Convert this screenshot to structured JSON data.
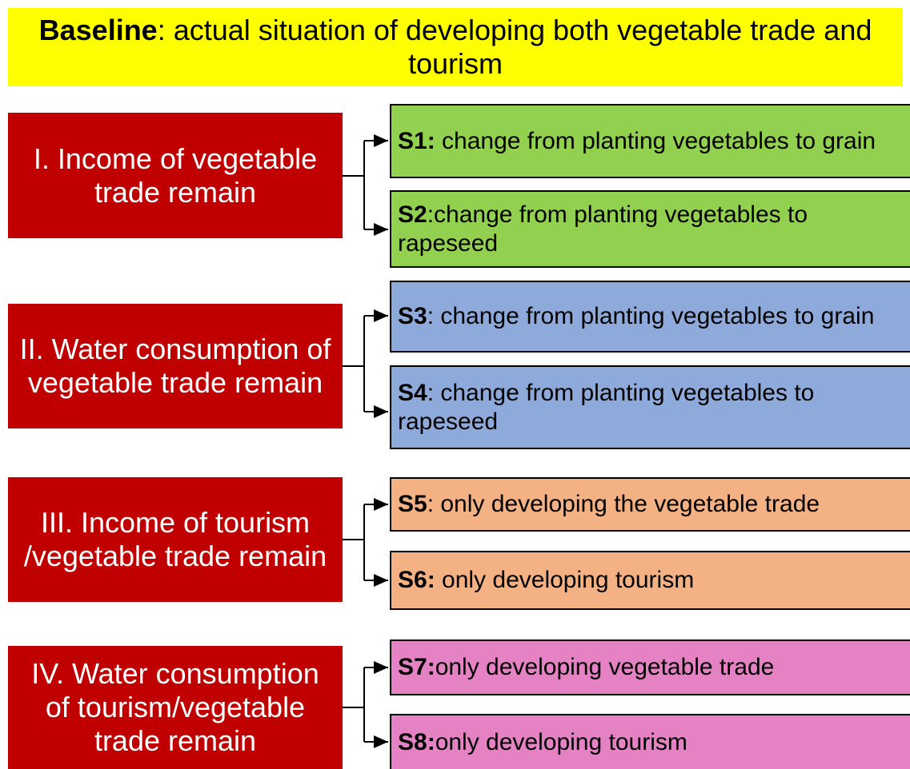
{
  "header": {
    "bold": "Baseline",
    "text": ": actual situation of developing both vegetable trade and tourism"
  },
  "groups": [
    {
      "label": "I. Income of vegetable trade remain",
      "scenarios": [
        {
          "id": "S1:",
          "text": " change from planting vegetables to grain"
        },
        {
          "id": "S2",
          "text": ":change from planting vegetables to rapeseed"
        }
      ]
    },
    {
      "label": "II. Water consumption of vegetable trade remain",
      "scenarios": [
        {
          "id": "S3",
          "text": ": change from planting vegetables to grain"
        },
        {
          "id": "S4",
          "text": ": change from planting vegetables to rapeseed"
        }
      ]
    },
    {
      "label": "III. Income of tourism /vegetable trade remain",
      "scenarios": [
        {
          "id": "S5",
          "text": ": only developing the vegetable trade"
        },
        {
          "id": "S6:",
          "text": " only developing tourism"
        }
      ]
    },
    {
      "label": "IV. Water consumption of tourism/vegetable trade remain",
      "scenarios": [
        {
          "id": "S7:",
          "text": "only developing vegetable trade"
        },
        {
          "id": "S8:",
          "text": "only developing tourism"
        }
      ]
    }
  ]
}
